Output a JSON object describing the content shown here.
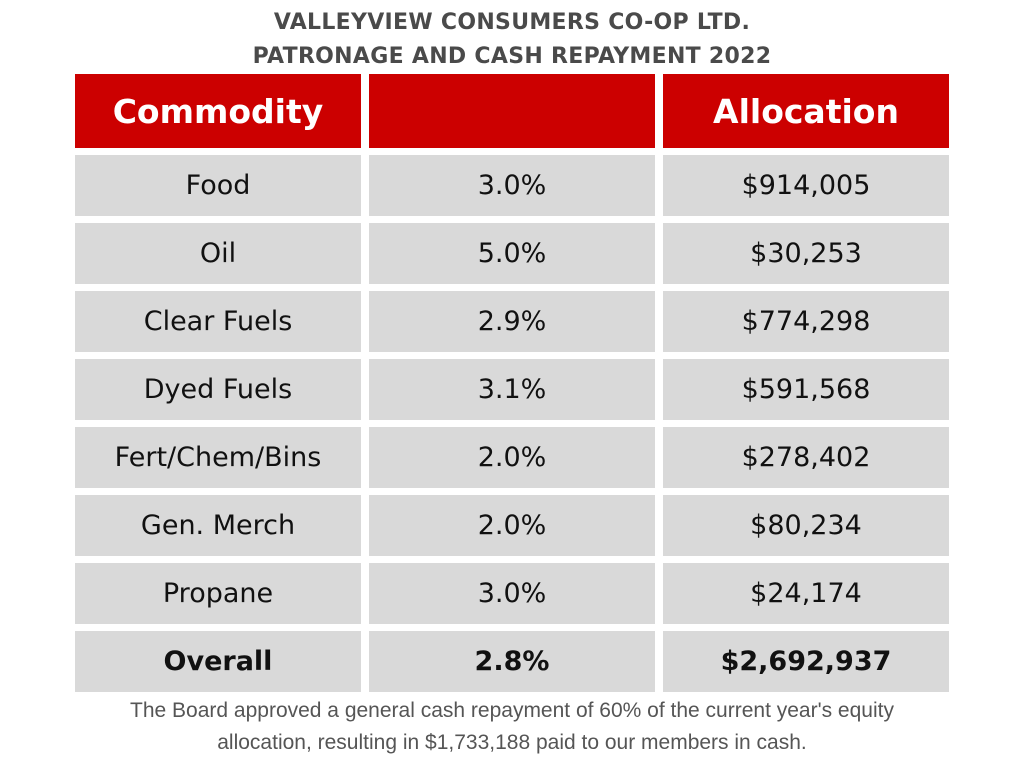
{
  "title": {
    "line1": "VALLEYVIEW CONSUMERS CO-OP LTD.",
    "line2": "PATRONAGE AND CASH REPAYMENT 2022"
  },
  "table": {
    "headers": [
      "Commodity",
      "",
      "Allocation"
    ],
    "rows": [
      {
        "commodity": "Food",
        "rate": "3.0%",
        "allocation": "$914,005"
      },
      {
        "commodity": "Oil",
        "rate": "5.0%",
        "allocation": "$30,253"
      },
      {
        "commodity": "Clear Fuels",
        "rate": "2.9%",
        "allocation": "$774,298"
      },
      {
        "commodity": "Dyed Fuels",
        "rate": "3.1%",
        "allocation": "$591,568"
      },
      {
        "commodity": "Fert/Chem/Bins",
        "rate": "2.0%",
        "allocation": "$278,402"
      },
      {
        "commodity": "Gen. Merch",
        "rate": "2.0%",
        "allocation": "$80,234"
      },
      {
        "commodity": "Propane",
        "rate": "3.0%",
        "allocation": "$24,174"
      }
    ],
    "total": {
      "commodity": "Overall",
      "rate": "2.8%",
      "allocation": "$2,692,937"
    }
  },
  "footnote": {
    "line1": "The Board approved a general cash repayment of 60% of the current year's equity",
    "line2": "allocation, resulting in $1,733,188 paid to our members in cash."
  },
  "colors": {
    "header_bg": "#cc0000",
    "cell_bg": "#d9d9d9",
    "title_text": "#4a4a4a"
  }
}
